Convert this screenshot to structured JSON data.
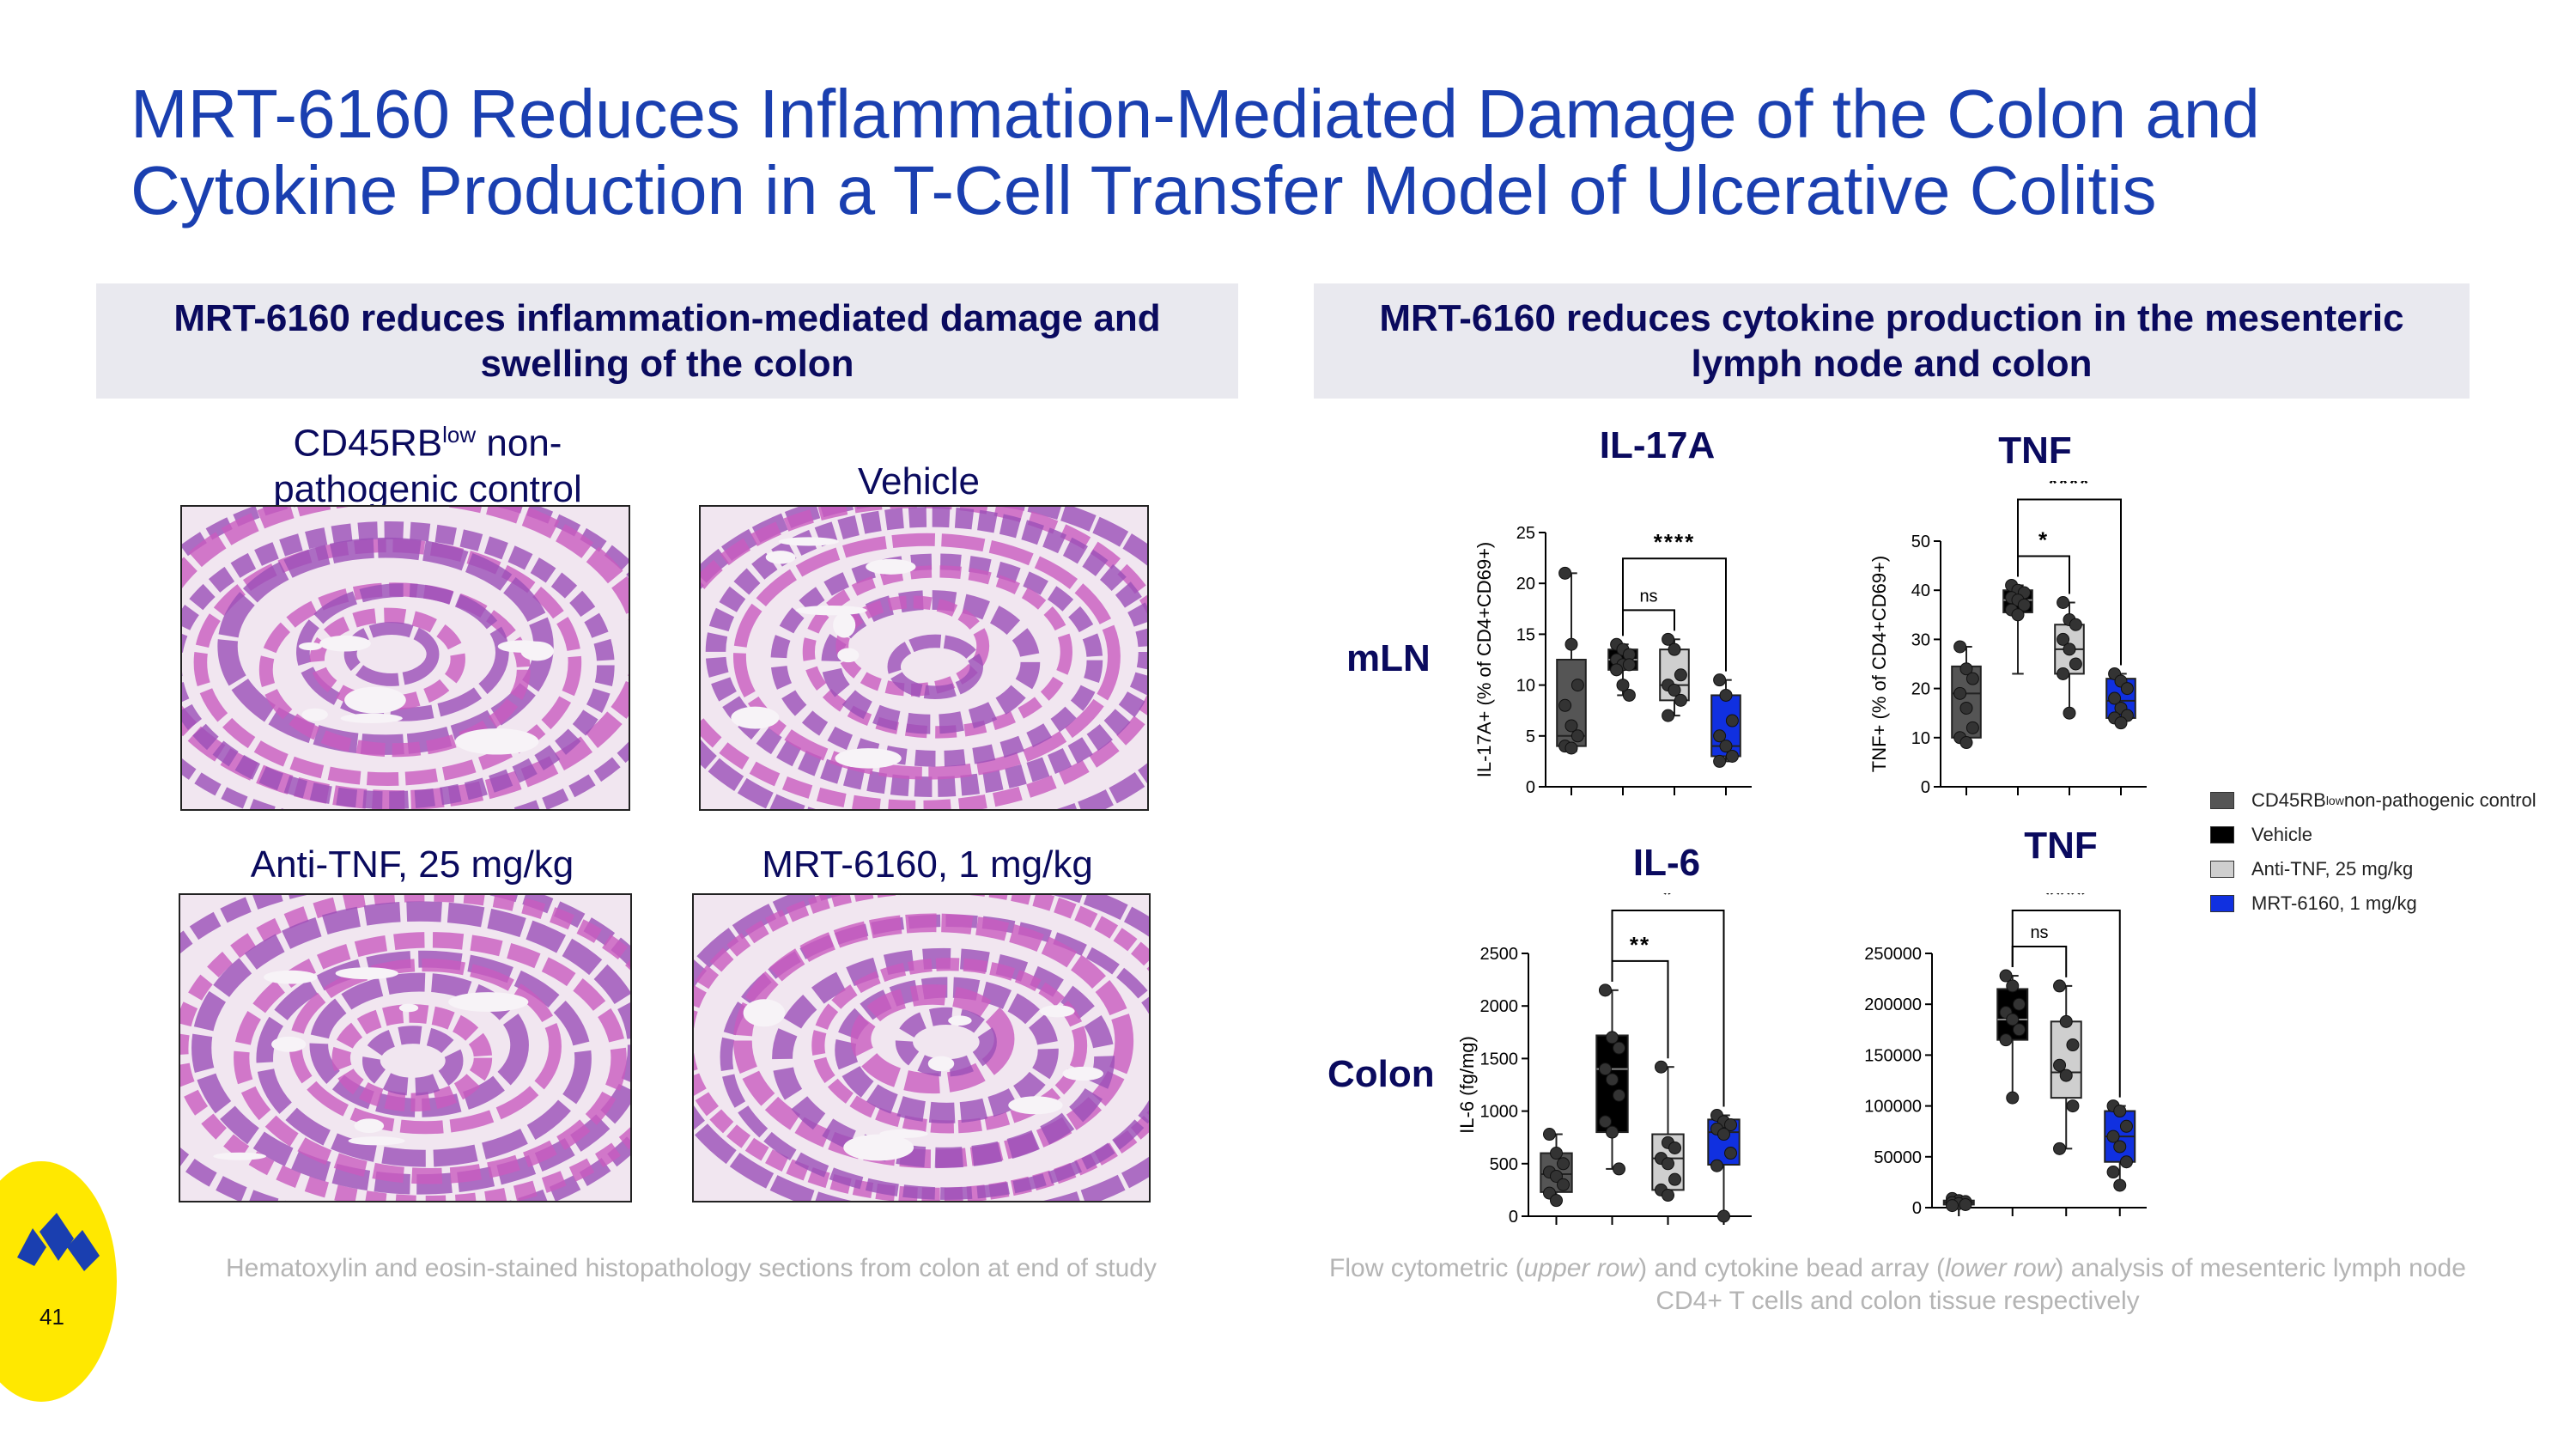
{
  "title_line1": "MRT-6160 Reduces Inflammation-Mediated Damage of the Colon and",
  "title_line2": "Cytokine Production in a T-Cell Transfer Model of Ulcerative Colitis",
  "left_panel": {
    "header": "MRT-6160 reduces inflammation-mediated damage and swelling of the colon",
    "images": [
      {
        "label_pre": "CD45RB",
        "label_sup": "low",
        "label_post": " non-",
        "label_line2": "pathogenic control"
      },
      {
        "label": "Vehicle"
      },
      {
        "label": "Anti-TNF, 25 mg/kg"
      },
      {
        "label": "MRT-6160, 1 mg/kg"
      }
    ],
    "caption": "Hematoxylin and eosin-stained histopathology sections from colon at end of study"
  },
  "right_panel": {
    "header": "MRT-6160 reduces cytokine production in the mesenteric lymph node and colon",
    "row_labels": [
      "mLN",
      "Colon"
    ],
    "caption_parts": [
      "Flow cytometric (",
      "upper row",
      ") and cytokine bead array (",
      "lower row",
      ") analysis of mesenteric lymph node CD4+ T cells and colon tissue respectively"
    ]
  },
  "legend": {
    "items": [
      {
        "pre": "CD45RB",
        "sup": "low",
        "post": " non-pathogenic control",
        "color": "#555555"
      },
      {
        "pre": "Vehicle",
        "sup": "",
        "post": "",
        "color": "#000000"
      },
      {
        "pre": "Anti-TNF, 25 mg/kg",
        "sup": "",
        "post": "",
        "color": "#cfcfcf"
      },
      {
        "pre": "MRT-6160, 1 mg/kg",
        "sup": "",
        "post": "",
        "color": "#1030e0"
      }
    ]
  },
  "page_number": "41",
  "colors": {
    "title": "#1a3fb0",
    "navy": "#0a0a5e",
    "group_colors": [
      "#555555",
      "#000000",
      "#cfcfcf",
      "#1030e0"
    ]
  },
  "chart_data": [
    {
      "type": "box",
      "title": "IL-17A",
      "ylabel": "IL-17A+ (% of CD4+CD69+)",
      "ylim": [
        0,
        25
      ],
      "yticks": [
        0,
        5,
        10,
        15,
        20,
        25
      ],
      "groups": [
        "CD45RBlow non-pathogenic control",
        "Vehicle",
        "Anti-TNF, 25 mg/kg",
        "MRT-6160, 1 mg/kg"
      ],
      "boxes": [
        {
          "min": 3.5,
          "q1": 4,
          "median": 5,
          "q3": 12.5,
          "max": 21
        },
        {
          "min": 9,
          "q1": 11.5,
          "median": 12.5,
          "q3": 13.5,
          "max": 14
        },
        {
          "min": 7,
          "q1": 8.5,
          "median": 10,
          "q3": 13.5,
          "max": 14.5
        },
        {
          "min": 2.5,
          "q1": 3,
          "median": 4,
          "q3": 9,
          "max": 10.5
        }
      ],
      "points": [
        [
          21,
          14,
          10,
          8,
          6,
          5,
          4,
          3.8
        ],
        [
          14,
          13.5,
          13,
          12.5,
          12,
          12,
          11.5,
          10,
          9
        ],
        [
          14.5,
          13.5,
          11,
          10,
          9.5,
          8.5,
          7
        ],
        [
          10.5,
          9,
          6.5,
          5,
          4,
          3,
          2.5
        ]
      ],
      "significance": [
        {
          "from": 1,
          "to": 2,
          "label": "ns"
        },
        {
          "from": 1,
          "to": 3,
          "label": "****"
        }
      ]
    },
    {
      "type": "box",
      "title": "TNF",
      "ylabel": "TNF+ (% of CD4+CD69+)",
      "ylim": [
        0,
        50
      ],
      "yticks": [
        0,
        10,
        20,
        30,
        40,
        50
      ],
      "groups": [
        "CD45RBlow non-pathogenic control",
        "Vehicle",
        "Anti-TNF, 25 mg/kg",
        "MRT-6160, 1 mg/kg"
      ],
      "boxes": [
        {
          "min": 9,
          "q1": 10,
          "median": 19,
          "q3": 24.5,
          "max": 28.5
        },
        {
          "min": 23,
          "q1": 35.5,
          "median": 38,
          "q3": 40,
          "max": 41
        },
        {
          "min": 15,
          "q1": 23,
          "median": 28,
          "q3": 33,
          "max": 37.5
        },
        {
          "min": 13,
          "q1": 14,
          "median": 17.5,
          "q3": 22,
          "max": 23
        }
      ],
      "points": [
        [
          28.5,
          24,
          22,
          19,
          16,
          12,
          10,
          9
        ],
        [
          41,
          40,
          39.5,
          38.5,
          38,
          37,
          36,
          35
        ],
        [
          37.5,
          34,
          33,
          30,
          28,
          25,
          23,
          15
        ],
        [
          23,
          21.5,
          20,
          18,
          16,
          14.5,
          14,
          13
        ]
      ],
      "significance": [
        {
          "from": 1,
          "to": 2,
          "label": "*"
        },
        {
          "from": 1,
          "to": 3,
          "label": "****"
        }
      ]
    },
    {
      "type": "box",
      "title": "IL-6",
      "ylabel": "IL-6 (fg/mg)",
      "ylim": [
        0,
        2500
      ],
      "yticks": [
        0,
        500,
        1000,
        1500,
        2000,
        2500
      ],
      "groups": [
        "CD45RBlow non-pathogenic control",
        "Vehicle",
        "Anti-TNF, 25 mg/kg",
        "MRT-6160, 1 mg/kg"
      ],
      "boxes": [
        {
          "min": 150,
          "q1": 230,
          "median": 400,
          "q3": 600,
          "max": 780
        },
        {
          "min": 450,
          "q1": 800,
          "median": 1400,
          "q3": 1720,
          "max": 2150
        },
        {
          "min": 200,
          "q1": 250,
          "median": 550,
          "q3": 780,
          "max": 1420
        },
        {
          "min": 0,
          "q1": 490,
          "median": 800,
          "q3": 920,
          "max": 960
        }
      ],
      "points": [
        [
          780,
          600,
          500,
          420,
          380,
          300,
          220,
          150
        ],
        [
          2150,
          1700,
          1600,
          1400,
          1300,
          1150,
          900,
          800,
          450
        ],
        [
          1420,
          700,
          650,
          550,
          500,
          350,
          250,
          200
        ],
        [
          960,
          900,
          870,
          830,
          780,
          600,
          480,
          0
        ]
      ],
      "significance": [
        {
          "from": 1,
          "to": 2,
          "label": "**"
        },
        {
          "from": 1,
          "to": 3,
          "label": "*"
        }
      ]
    },
    {
      "type": "box",
      "title": "TNF",
      "ylabel": "",
      "ylim": [
        0,
        250000
      ],
      "yticks": [
        0,
        50000,
        100000,
        150000,
        200000,
        250000
      ],
      "groups": [
        "CD45RBlow non-pathogenic control",
        "Vehicle",
        "Anti-TNF, 25 mg/kg",
        "MRT-6160, 1 mg/kg"
      ],
      "boxes": [
        {
          "min": 2000,
          "q1": 3000,
          "median": 5000,
          "q3": 7000,
          "max": 9000
        },
        {
          "min": 108000,
          "q1": 165000,
          "median": 185000,
          "q3": 215000,
          "max": 228000
        },
        {
          "min": 58000,
          "q1": 108000,
          "median": 133000,
          "q3": 183000,
          "max": 218000
        },
        {
          "min": 22000,
          "q1": 45000,
          "median": 70000,
          "q3": 95000,
          "max": 100000
        }
      ],
      "points": [
        [
          9000,
          7000,
          6000,
          5000,
          4000,
          3000,
          2000
        ],
        [
          228000,
          218000,
          200000,
          192000,
          185000,
          175000,
          165000,
          108000
        ],
        [
          218000,
          183000,
          160000,
          140000,
          130000,
          100000,
          58000
        ],
        [
          100000,
          95000,
          80000,
          70000,
          60000,
          45000,
          35000,
          22000
        ]
      ],
      "significance": [
        {
          "from": 1,
          "to": 2,
          "label": "ns"
        },
        {
          "from": 1,
          "to": 3,
          "label": "****"
        }
      ]
    }
  ]
}
